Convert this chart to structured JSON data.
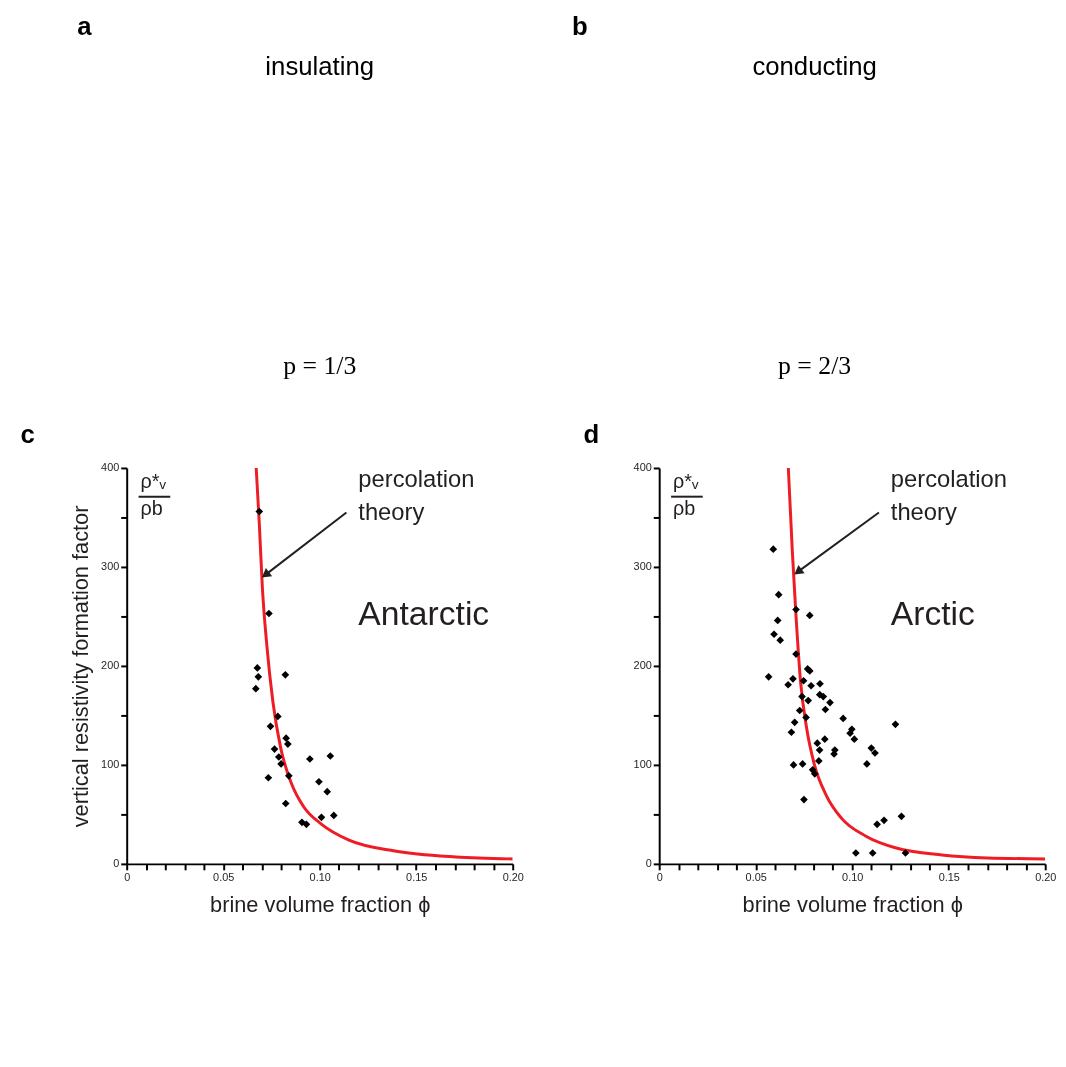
{
  "chart_data": [
    {
      "type": "other",
      "title": "a",
      "subtitle": "insulating",
      "annotations": [
        "p = 1/3"
      ]
    },
    {
      "type": "other",
      "title": "b",
      "subtitle": "conducting",
      "annotations": [
        "p = 2/3"
      ]
    },
    {
      "type": "scatter",
      "title": "c",
      "xlabel": "brine volume fraction  ϕ",
      "ylabel": "vertical resistivity formation factor",
      "xlim": [
        0,
        0.2
      ],
      "ylim": [
        0,
        400
      ],
      "xticks": [
        0,
        {
          "value": 0.01,
          "label": null
        },
        {
          "value": 0.02,
          "label": null
        },
        {
          "value": 0.03,
          "label": null
        },
        {
          "value": 0.04,
          "label": null
        },
        0.05,
        {
          "value": 0.06,
          "label": null
        },
        {
          "value": 0.07,
          "label": null
        },
        {
          "value": 0.08,
          "label": null
        },
        {
          "value": 0.09,
          "label": null
        },
        {
          "value": 0.1,
          "label": "0.10"
        },
        {
          "value": 0.11,
          "label": null
        },
        {
          "value": 0.12,
          "label": null
        },
        {
          "value": 0.13,
          "label": null
        },
        {
          "value": 0.14,
          "label": null
        },
        0.15,
        {
          "value": 0.16,
          "label": null
        },
        {
          "value": 0.17,
          "label": null
        },
        {
          "value": 0.18,
          "label": null
        },
        {
          "value": 0.19,
          "label": null
        },
        {
          "value": 0.2,
          "label": "0.20"
        }
      ],
      "yticks": [
        0,
        {
          "value": 50,
          "label": null
        },
        100,
        {
          "value": 150,
          "label": null
        },
        200,
        {
          "value": 250,
          "label": null
        },
        300,
        {
          "value": 350,
          "label": null
        },
        400
      ],
      "annotations": [
        "ρ*ᵥ",
        "ρb",
        {
          "text": "percolation theory",
          "x": 0.0725,
          "y": 293
        },
        "Antarctic"
      ],
      "series": [
        {
          "type": "scatter",
          "marker": "diamond",
          "color": "#000000",
          "x": [
            0.0687,
            0.0737,
            0.0677,
            0.0682,
            0.0669,
            0.0822,
            0.0783,
            0.0745,
            0.0826,
            0.0835,
            0.0766,
            0.0788,
            0.08,
            0.0734,
            0.084,
            0.0949,
            0.1055,
            0.0996,
            0.1039,
            0.0824,
            0.1009,
            0.1073,
            0.0908,
            0.0931
          ],
          "values": [
            356,
            253,
            198,
            189,
            177,
            191,
            149,
            139,
            127,
            121,
            116,
            108,
            101,
            87,
            89,
            106,
            109,
            83,
            73,
            61,
            47,
            49,
            42,
            40
          ]
        },
        {
          "type": "line",
          "color": "#ee1c25",
          "x": [
            0.0671,
            0.0687,
            0.0703,
            0.0726,
            0.0758,
            0.0797,
            0.0852,
            0.0916,
            0.101,
            0.1152,
            0.1389,
            0.1705,
            0.2
          ],
          "values": [
            400,
            344,
            279,
            221,
            163,
            118,
            82,
            58,
            40,
            24,
            13,
            7,
            5
          ]
        }
      ]
    },
    {
      "type": "scatter",
      "title": "d",
      "xlabel": "brine volume fraction  ϕ",
      "xlim": [
        0,
        0.2
      ],
      "ylim": [
        0,
        400
      ],
      "xticks": [
        0,
        {
          "value": 0.01,
          "label": null
        },
        {
          "value": 0.02,
          "label": null
        },
        {
          "value": 0.03,
          "label": null
        },
        {
          "value": 0.04,
          "label": null
        },
        0.05,
        {
          "value": 0.06,
          "label": null
        },
        {
          "value": 0.07,
          "label": null
        },
        {
          "value": 0.08,
          "label": null
        },
        {
          "value": 0.09,
          "label": null
        },
        {
          "value": 0.1,
          "label": "0.10"
        },
        {
          "value": 0.11,
          "label": null
        },
        {
          "value": 0.12,
          "label": null
        },
        {
          "value": 0.13,
          "label": null
        },
        {
          "value": 0.14,
          "label": null
        },
        0.15,
        {
          "value": 0.16,
          "label": null
        },
        {
          "value": 0.17,
          "label": null
        },
        {
          "value": 0.18,
          "label": null
        },
        {
          "value": 0.19,
          "label": null
        },
        {
          "value": 0.2,
          "label": "0.20"
        }
      ],
      "yticks": [
        0,
        {
          "value": 50,
          "label": null
        },
        100,
        {
          "value": 150,
          "label": null
        },
        200,
        {
          "value": 250,
          "label": null
        },
        300,
        {
          "value": 350,
          "label": null
        },
        400
      ],
      "annotations": [
        "ρ*ᵥ",
        "ρb",
        {
          "text": "percolation theory",
          "x": 0.0725,
          "y": 296
        },
        "Arctic"
      ],
      "series": [
        {
          "type": "scatter",
          "marker": "diamond",
          "color": "#000000",
          "x": [
            0.0591,
            0.0619,
            0.0709,
            0.078,
            0.0614,
            0.0595,
            0.0627,
            0.0709,
            0.0769,
            0.078,
            0.0567,
            0.0693,
            0.0668,
            0.0748,
            0.0787,
            0.0833,
            0.0832,
            0.085,
            0.0885,
            0.0861,
            0.074,
            0.0772,
            0.0728,
            0.0761,
            0.0953,
            0.0702,
            0.0998,
            0.0989,
            0.1224,
            0.0685,
            0.1011,
            0.0858,
            0.0819,
            0.0831,
            0.091,
            0.0906,
            0.1099,
            0.1118,
            0.0827,
            0.0696,
            0.0743,
            0.1076,
            0.0795,
            0.0806,
            0.075,
            0.1165,
            0.1129,
            0.1255,
            0.1019,
            0.1106,
            0.1276
          ],
          "values": [
            318,
            272,
            257,
            251,
            246,
            232,
            226,
            212,
            197,
            195,
            189,
            187,
            181,
            185,
            180,
            182,
            171,
            169,
            163,
            156,
            169,
            165,
            155,
            148,
            147,
            143,
            136,
            132,
            141,
            133,
            126,
            126,
            122,
            115,
            115,
            111,
            117,
            112,
            104,
            100,
            101,
            101,
            95,
            91,
            65,
            44,
            40,
            48,
            11,
            11,
            11
          ]
        },
        {
          "type": "line",
          "color": "#ee1c25",
          "x": [
            0.0669,
            0.069,
            0.0709,
            0.0732,
            0.0764,
            0.0803,
            0.0866,
            0.0945,
            0.1071,
            0.1228,
            0.1465,
            0.1701,
            0.2
          ],
          "values": [
            400,
            315,
            250,
            185,
            137,
            101,
            69,
            46,
            28,
            16,
            9,
            6,
            5
          ]
        }
      ]
    }
  ]
}
